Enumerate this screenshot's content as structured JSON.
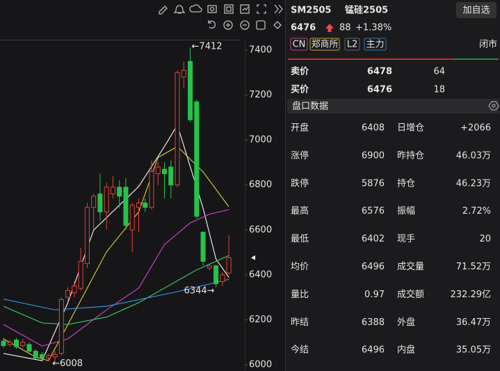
{
  "chart_data": {
    "type": "candlestick",
    "open": [
      6105,
      6090,
      6110,
      6085,
      6090,
      6060,
      6045,
      6030,
      6035,
      6050,
      6300,
      6320,
      6340,
      6450,
      6700,
      6760,
      6680,
      6760,
      6790,
      6790,
      6600,
      6700,
      6720,
      6700,
      6850,
      6870,
      6880,
      6800,
      7280,
      7350,
      7170,
      6590,
      6430,
      6440,
      6370,
      6408
    ],
    "high": [
      6120,
      6110,
      6120,
      6115,
      6100,
      6070,
      6055,
      6050,
      6060,
      6300,
      6345,
      6370,
      6520,
      6720,
      6760,
      6850,
      6810,
      6840,
      6820,
      6830,
      6720,
      6740,
      6740,
      6910,
      6900,
      6900,
      6910,
      7310,
      7350,
      7412,
      7180,
      6590,
      6450,
      6445,
      6410,
      6576
    ],
    "low": [
      6075,
      6080,
      6070,
      6075,
      6050,
      6025,
      6020,
      6015,
      6008,
      6040,
      6280,
      6300,
      6330,
      6430,
      6600,
      6640,
      6600,
      6740,
      6700,
      6600,
      6500,
      6590,
      6680,
      6690,
      6800,
      6740,
      6740,
      6790,
      7230,
      7080,
      6650,
      6440,
      6420,
      6344,
      6350,
      6402
    ],
    "close": [
      6085,
      6100,
      6080,
      6100,
      6060,
      6030,
      6030,
      6040,
      6045,
      6290,
      6330,
      6350,
      6460,
      6700,
      6750,
      6680,
      6790,
      6790,
      6750,
      6620,
      6710,
      6720,
      6700,
      6860,
      6880,
      6850,
      6800,
      7300,
      7310,
      7090,
      6660,
      6460,
      6440,
      6360,
      6400,
      6476
    ],
    "up_color": "#e8413a",
    "down_color": "#27c24c",
    "series": [
      {
        "color": "#e8e8e8",
        "x": [
          0,
          6,
          10,
          14,
          21,
          25,
          27,
          31,
          33,
          35
        ],
        "values": [
          6050,
          6018,
          6276,
          6599,
          6793,
          6971,
          7067,
          6696,
          6470,
          6389
        ]
      },
      {
        "color": "#d8c030",
        "x": [
          0,
          5,
          7,
          10,
          16,
          21,
          24,
          27,
          31,
          35
        ],
        "values": [
          6115,
          6034,
          6018,
          6179,
          6502,
          6680,
          6922,
          6971,
          6858,
          6703
        ]
      },
      {
        "color": "#d040c0",
        "x": [
          0,
          6,
          10,
          16,
          21,
          25,
          29,
          32,
          35
        ],
        "values": [
          6179,
          6083,
          6115,
          6244,
          6341,
          6535,
          6631,
          6670,
          6690
        ]
      },
      {
        "color": "#40c060",
        "x": [
          0,
          6,
          10,
          16,
          21,
          25,
          30,
          35
        ],
        "values": [
          6260,
          6186,
          6179,
          6212,
          6276,
          6341,
          6422,
          6486
        ]
      },
      {
        "color": "#3a8ee0",
        "x": [
          0,
          8,
          16,
          27,
          35
        ],
        "values": [
          6292,
          6244,
          6260,
          6325,
          6380
        ]
      }
    ],
    "ylim": [
      5972,
      7623
    ],
    "yticks": [
      6000,
      6200,
      6400,
      6600,
      6800,
      7000,
      7200,
      7400
    ],
    "annotations": [
      "←7412",
      "←6008",
      "6344→"
    ]
  },
  "header": {
    "symbol": "SM2505",
    "name": "锰硅2505",
    "button": "加自选"
  },
  "price": {
    "last": "6476",
    "change": "88",
    "change_pct": "+1.38%"
  },
  "tags": [
    "CN",
    "郑商所",
    "L2",
    "主力"
  ],
  "status": "闭市",
  "orderbook": [
    {
      "label": "卖价",
      "price": "6478",
      "volume": "64"
    },
    {
      "label": "买价",
      "price": "6476",
      "volume": "18"
    }
  ],
  "section_title": "盘口数据",
  "stats": [
    [
      "开盘",
      "6408",
      "日增仓",
      "+2066"
    ],
    [
      "涨停",
      "6900",
      "昨持仓",
      "46.03万"
    ],
    [
      "跌停",
      "5876",
      "持仓",
      "46.23万"
    ],
    [
      "最高",
      "6576",
      "振幅",
      "2.72%"
    ],
    [
      "最低",
      "6402",
      "现手",
      "20"
    ],
    [
      "均价",
      "6496",
      "成交量",
      "71.52万"
    ],
    [
      "量比",
      "0.97",
      "成交额",
      "232.29亿"
    ],
    [
      "昨结",
      "6388",
      "外盘",
      "36.47万"
    ],
    [
      "今结",
      "6496",
      "内盘",
      "35.05万"
    ]
  ]
}
